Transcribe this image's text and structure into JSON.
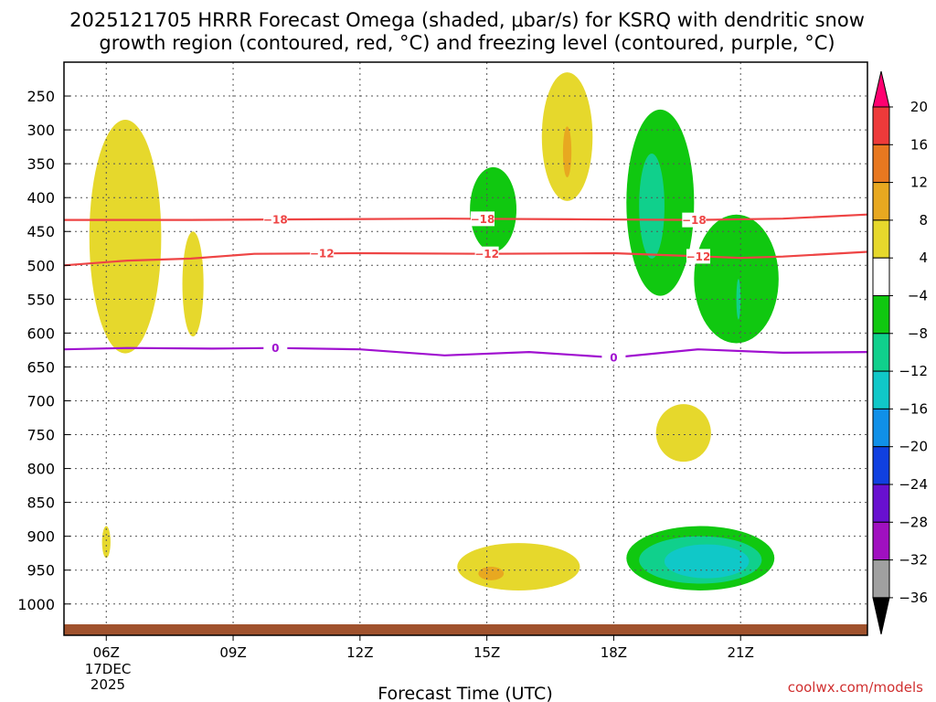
{
  "chart_data": {
    "type": "heatmap",
    "title_line1": "2025121705 HRRR Forecast Omega (shaded, μbar/s) for KSRQ with dendritic snow",
    "title_line2": "growth region (contoured, red, °C) and freezing level (contoured, purple, °C)",
    "xlabel": "Forecast Time (UTC)",
    "ylabel": "",
    "credit": "coolwx.com/models",
    "x_ticks": [
      {
        "hour": 6,
        "label": "06Z"
      },
      {
        "hour": 9,
        "label": "09Z"
      },
      {
        "hour": 12,
        "label": "12Z"
      },
      {
        "hour": 15,
        "label": "15Z"
      },
      {
        "hour": 18,
        "label": "18Z"
      },
      {
        "hour": 21,
        "label": "21Z"
      }
    ],
    "x_date_label": [
      "17DEC",
      "2025"
    ],
    "xlim_hours": [
      5,
      24
    ],
    "y_ticks": [
      250,
      300,
      350,
      400,
      450,
      500,
      550,
      600,
      650,
      700,
      750,
      800,
      850,
      900,
      950,
      1000
    ],
    "ylim_hpa": [
      200,
      1030
    ],
    "colorbar": {
      "levels": [
        "20",
        "16",
        "12",
        "8",
        "4",
        "−4",
        "−8",
        "−12",
        "−16",
        "−20",
        "−24",
        "−28",
        "−32",
        "−36"
      ],
      "colors": [
        "#ff0070",
        "#ee3a3a",
        "#e87820",
        "#e8a820",
        "#e6d82c",
        "#ffffff",
        "#10c810",
        "#10d08c",
        "#10c8c8",
        "#1090e8",
        "#1040e0",
        "#6810d0",
        "#a010c0",
        "#a0a0a0",
        "#000000"
      ]
    },
    "omega_regions": [
      {
        "level": "4 to 8",
        "hours": [
          5.6,
          7.3
        ],
        "hpa": [
          285,
          630
        ],
        "color": "#e6d82c"
      },
      {
        "level": "4 to 8",
        "hours": [
          7.8,
          8.3
        ],
        "hpa": [
          450,
          605
        ],
        "color": "#e6d82c"
      },
      {
        "level": "4 to 8",
        "hours": [
          5.9,
          6.1
        ],
        "hpa": [
          885,
          932
        ],
        "color": "#e6d82c"
      },
      {
        "level": "4 to 8",
        "hours": [
          16.3,
          17.5
        ],
        "hpa": [
          215,
          405
        ],
        "color": "#e6d82c"
      },
      {
        "level": "8 to 12",
        "hours": [
          16.8,
          17.0
        ],
        "hpa": [
          295,
          370
        ],
        "color": "#e8a820"
      },
      {
        "level": "4 to 8",
        "hours": [
          19.0,
          20.3
        ],
        "hpa": [
          705,
          790
        ],
        "color": "#e6d82c"
      },
      {
        "level": "4 to 8",
        "hours": [
          14.3,
          17.2
        ],
        "hpa": [
          910,
          980
        ],
        "color": "#e6d82c"
      },
      {
        "level": "8 to 12",
        "hours": [
          14.8,
          15.4
        ],
        "hpa": [
          945,
          965
        ],
        "color": "#e8a820"
      },
      {
        "level": "-4 to -8",
        "hours": [
          14.6,
          15.7
        ],
        "hpa": [
          355,
          480
        ],
        "color": "#10c810"
      },
      {
        "level": "-4 to -8",
        "hours": [
          18.3,
          19.9
        ],
        "hpa": [
          270,
          545
        ],
        "color": "#10c810"
      },
      {
        "level": "-8 to -12",
        "hours": [
          18.6,
          19.2
        ],
        "hpa": [
          335,
          490
        ],
        "color": "#10d08c"
      },
      {
        "level": "-4 to -8",
        "hours": [
          19.9,
          21.9
        ],
        "hpa": [
          425,
          615
        ],
        "color": "#10c810"
      },
      {
        "level": "-8 to -12",
        "hours": [
          20.9,
          21.0
        ],
        "hpa": [
          520,
          580
        ],
        "color": "#10d08c"
      },
      {
        "level": "-4 to -8",
        "hours": [
          18.3,
          21.8
        ],
        "hpa": [
          885,
          980
        ],
        "color": "#10c810"
      },
      {
        "level": "-8 to -12",
        "hours": [
          18.6,
          21.5
        ],
        "hpa": [
          900,
          970
        ],
        "color": "#10d08c"
      },
      {
        "level": "-12 to -16",
        "hours": [
          19.2,
          21.2
        ],
        "hpa": [
          912,
          962
        ],
        "color": "#10c8c8"
      }
    ],
    "series": [
      {
        "name": "-18 °C isotherm",
        "color": "#ee4444",
        "label": "−18",
        "label_hours": [
          10.0,
          14.9,
          19.9
        ],
        "points": [
          [
            5,
            433
          ],
          [
            8,
            433
          ],
          [
            11,
            432
          ],
          [
            14,
            431
          ],
          [
            17,
            432
          ],
          [
            20,
            433
          ],
          [
            22,
            431
          ],
          [
            24,
            425
          ]
        ]
      },
      {
        "name": "-12 °C isotherm",
        "color": "#ee4444",
        "label": "−12",
        "label_hours": [
          11.1,
          15.0,
          20.0
        ],
        "points": [
          [
            5,
            500
          ],
          [
            6.5,
            493
          ],
          [
            8,
            490
          ],
          [
            9.5,
            483
          ],
          [
            12,
            482
          ],
          [
            15,
            483
          ],
          [
            18,
            482
          ],
          [
            21,
            489
          ],
          [
            22,
            487
          ],
          [
            24,
            480
          ]
        ]
      },
      {
        "name": "0 °C freezing level",
        "color": "#a010d0",
        "label": "0",
        "label_hours": [
          10.0,
          18.0
        ],
        "points": [
          [
            5,
            624
          ],
          [
            6.5,
            622
          ],
          [
            8.5,
            623
          ],
          [
            10,
            622
          ],
          [
            12,
            624
          ],
          [
            14,
            633
          ],
          [
            16,
            628
          ],
          [
            18,
            636
          ],
          [
            20,
            624
          ],
          [
            22,
            629
          ],
          [
            24,
            628
          ]
        ]
      }
    ]
  }
}
